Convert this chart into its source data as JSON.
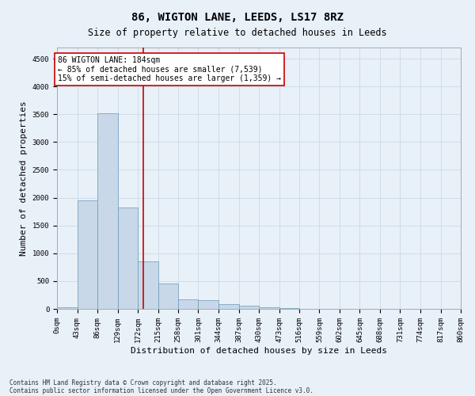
{
  "title": "86, WIGTON LANE, LEEDS, LS17 8RZ",
  "subtitle": "Size of property relative to detached houses in Leeds",
  "xlabel": "Distribution of detached houses by size in Leeds",
  "ylabel": "Number of detached properties",
  "bar_color": "#c8d8e8",
  "bar_edge_color": "#6699bb",
  "grid_color": "#d0dce8",
  "background_color": "#e8f0f8",
  "bins": [
    0,
    43,
    86,
    129,
    172,
    215,
    258,
    301,
    344,
    387,
    430,
    473,
    516,
    559,
    602,
    645,
    688,
    731,
    774,
    817,
    860
  ],
  "bin_labels": [
    "0sqm",
    "43sqm",
    "86sqm",
    "129sqm",
    "172sqm",
    "215sqm",
    "258sqm",
    "301sqm",
    "344sqm",
    "387sqm",
    "430sqm",
    "473sqm",
    "516sqm",
    "559sqm",
    "602sqm",
    "645sqm",
    "688sqm",
    "731sqm",
    "774sqm",
    "817sqm",
    "860sqm"
  ],
  "values": [
    30,
    1950,
    3520,
    1820,
    860,
    450,
    175,
    160,
    85,
    50,
    35,
    20,
    5,
    3,
    2,
    1,
    1,
    0,
    0,
    0
  ],
  "property_size": 184,
  "vline_color": "#cc0000",
  "annotation_text": "86 WIGTON LANE: 184sqm\n← 85% of detached houses are smaller (7,539)\n15% of semi-detached houses are larger (1,359) →",
  "annotation_box_color": "#ffffff",
  "annotation_border_color": "#cc0000",
  "ylim": [
    0,
    4700
  ],
  "yticks": [
    0,
    500,
    1000,
    1500,
    2000,
    2500,
    3000,
    3500,
    4000,
    4500
  ],
  "footnote1": "Contains HM Land Registry data © Crown copyright and database right 2025.",
  "footnote2": "Contains public sector information licensed under the Open Government Licence v3.0.",
  "title_fontsize": 10,
  "subtitle_fontsize": 8.5,
  "tick_fontsize": 6.5,
  "label_fontsize": 8,
  "annotation_fontsize": 7,
  "footnote_fontsize": 5.5
}
